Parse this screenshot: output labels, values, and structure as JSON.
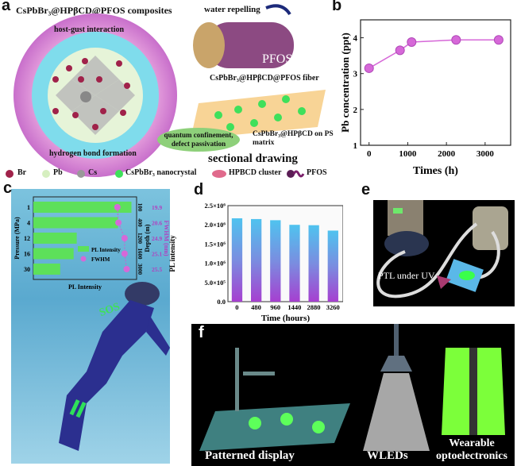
{
  "panels": {
    "a": {
      "label": "a",
      "title": "CsPbBr₃@HPβCD@PFOS composites",
      "host_guest": "host-gust interaction",
      "hydrogen_bond": "hydrogen bond formation",
      "water_repelling": "water repelling",
      "pfos_fiber_text": "PFOS",
      "fiber": "CsPbBr₃@HPβCD@PFOS fiber",
      "cloud": "quantum confinement, defect passivation",
      "matrix": "CsPbBr₃@HPβCD on PS matrix",
      "sectional": "sectional drawing",
      "legend": [
        "Br",
        "Pb",
        "Cs",
        "CsPbBr₃ nanocrystal",
        "HPBCD cluster",
        "PFOS"
      ]
    },
    "b": {
      "label": "b"
    },
    "c": {
      "label": "c",
      "ylabel_left": "Pressure (MPa)",
      "pressures": [
        "1",
        "4",
        "12",
        "16",
        "30"
      ],
      "depths": [
        "100",
        "400",
        "1200",
        "1600",
        "3000"
      ],
      "depth_label": "Depth (m)",
      "fwhm_values": [
        "19.9",
        "20.6",
        "24.9",
        "25.1",
        "25.5"
      ],
      "fwhm_axis_label": "FWHM (nm)",
      "intensity_fractions": [
        0.95,
        0.82,
        0.42,
        0.39,
        0.26
      ],
      "legend": [
        "PL Intensity",
        "FWHM"
      ],
      "xlabel": "PL Intensity",
      "sos": "SOS"
    },
    "d": {
      "label": "d"
    },
    "e": {
      "label": "e",
      "annotation": "PTL under UV"
    },
    "f": {
      "label": "f",
      "captions": [
        "Patterned display",
        "WLEDs",
        "Wearable optoelectronics"
      ]
    }
  },
  "colors": {
    "pink_marker": "#d668d8",
    "bar_top": "#4fc3ef",
    "bar_bottom": "#a63fd0",
    "green": "#5de05a"
  },
  "chart_data": [
    {
      "type": "line",
      "panel": "b",
      "x": [
        0,
        800,
        1100,
        2250,
        3350
      ],
      "y": [
        3.15,
        3.65,
        3.88,
        3.94,
        3.94
      ],
      "xlabel": "Times (h)",
      "ylabel": "Pb concentration (ppt)",
      "xticks": [
        "0",
        "1000",
        "2000",
        "3000"
      ],
      "yticks": [
        "1",
        "2",
        "3",
        "4"
      ],
      "xlim": [
        -220,
        3660
      ],
      "ylim": [
        1,
        4.5
      ]
    },
    {
      "type": "bar",
      "panel": "d",
      "categories": [
        "0",
        "480",
        "960",
        "1440",
        "2880",
        "3260"
      ],
      "values": [
        2170000,
        2150000,
        2120000,
        2000000,
        1990000,
        1850000
      ],
      "xlabel": "Time (hours)",
      "ylabel": "PL intensity",
      "yticks": [
        "0.0",
        "5.0×10⁵",
        "1.0×10⁶",
        "1.5×10⁶",
        "2.0×10⁶",
        "2.5×10⁶"
      ],
      "ylim": [
        0,
        2500000
      ]
    }
  ]
}
